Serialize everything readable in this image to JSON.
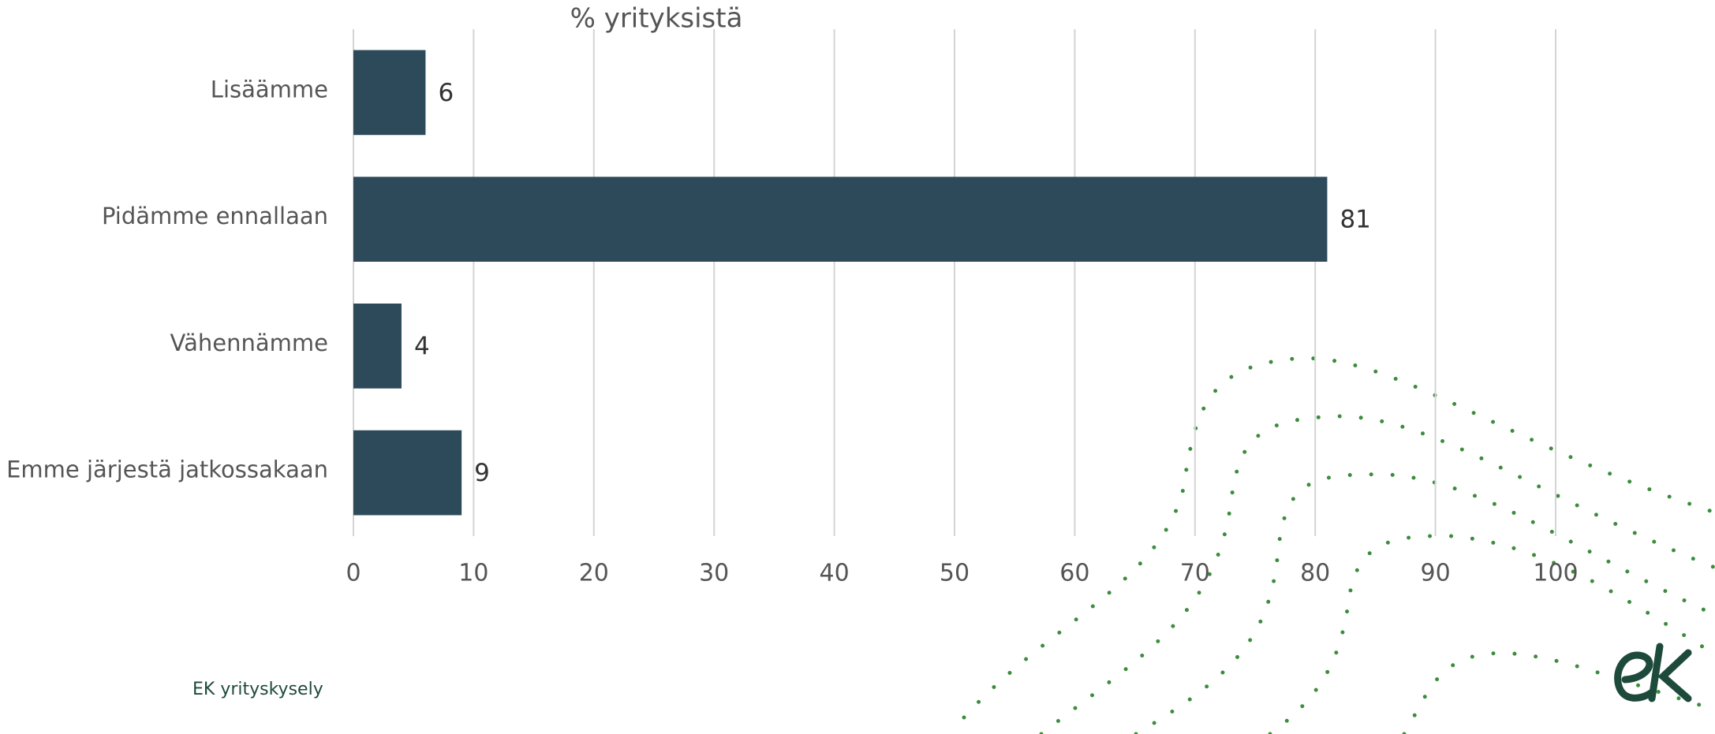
{
  "chart_data": {
    "type": "barh",
    "title": "% yrityksistä",
    "categories": [
      "Lisäämme",
      "Pidämme ennallaan",
      "Vähennämme",
      "Emme järjestä jatkossakaan"
    ],
    "values": [
      6,
      81,
      4,
      9
    ],
    "color": "#2d4a5a",
    "xlim": [
      0,
      100
    ],
    "xticks": [
      0,
      10,
      20,
      30,
      40,
      50,
      60,
      70,
      80,
      90,
      100
    ],
    "grid": true,
    "source": "EK yrityskysely"
  }
}
